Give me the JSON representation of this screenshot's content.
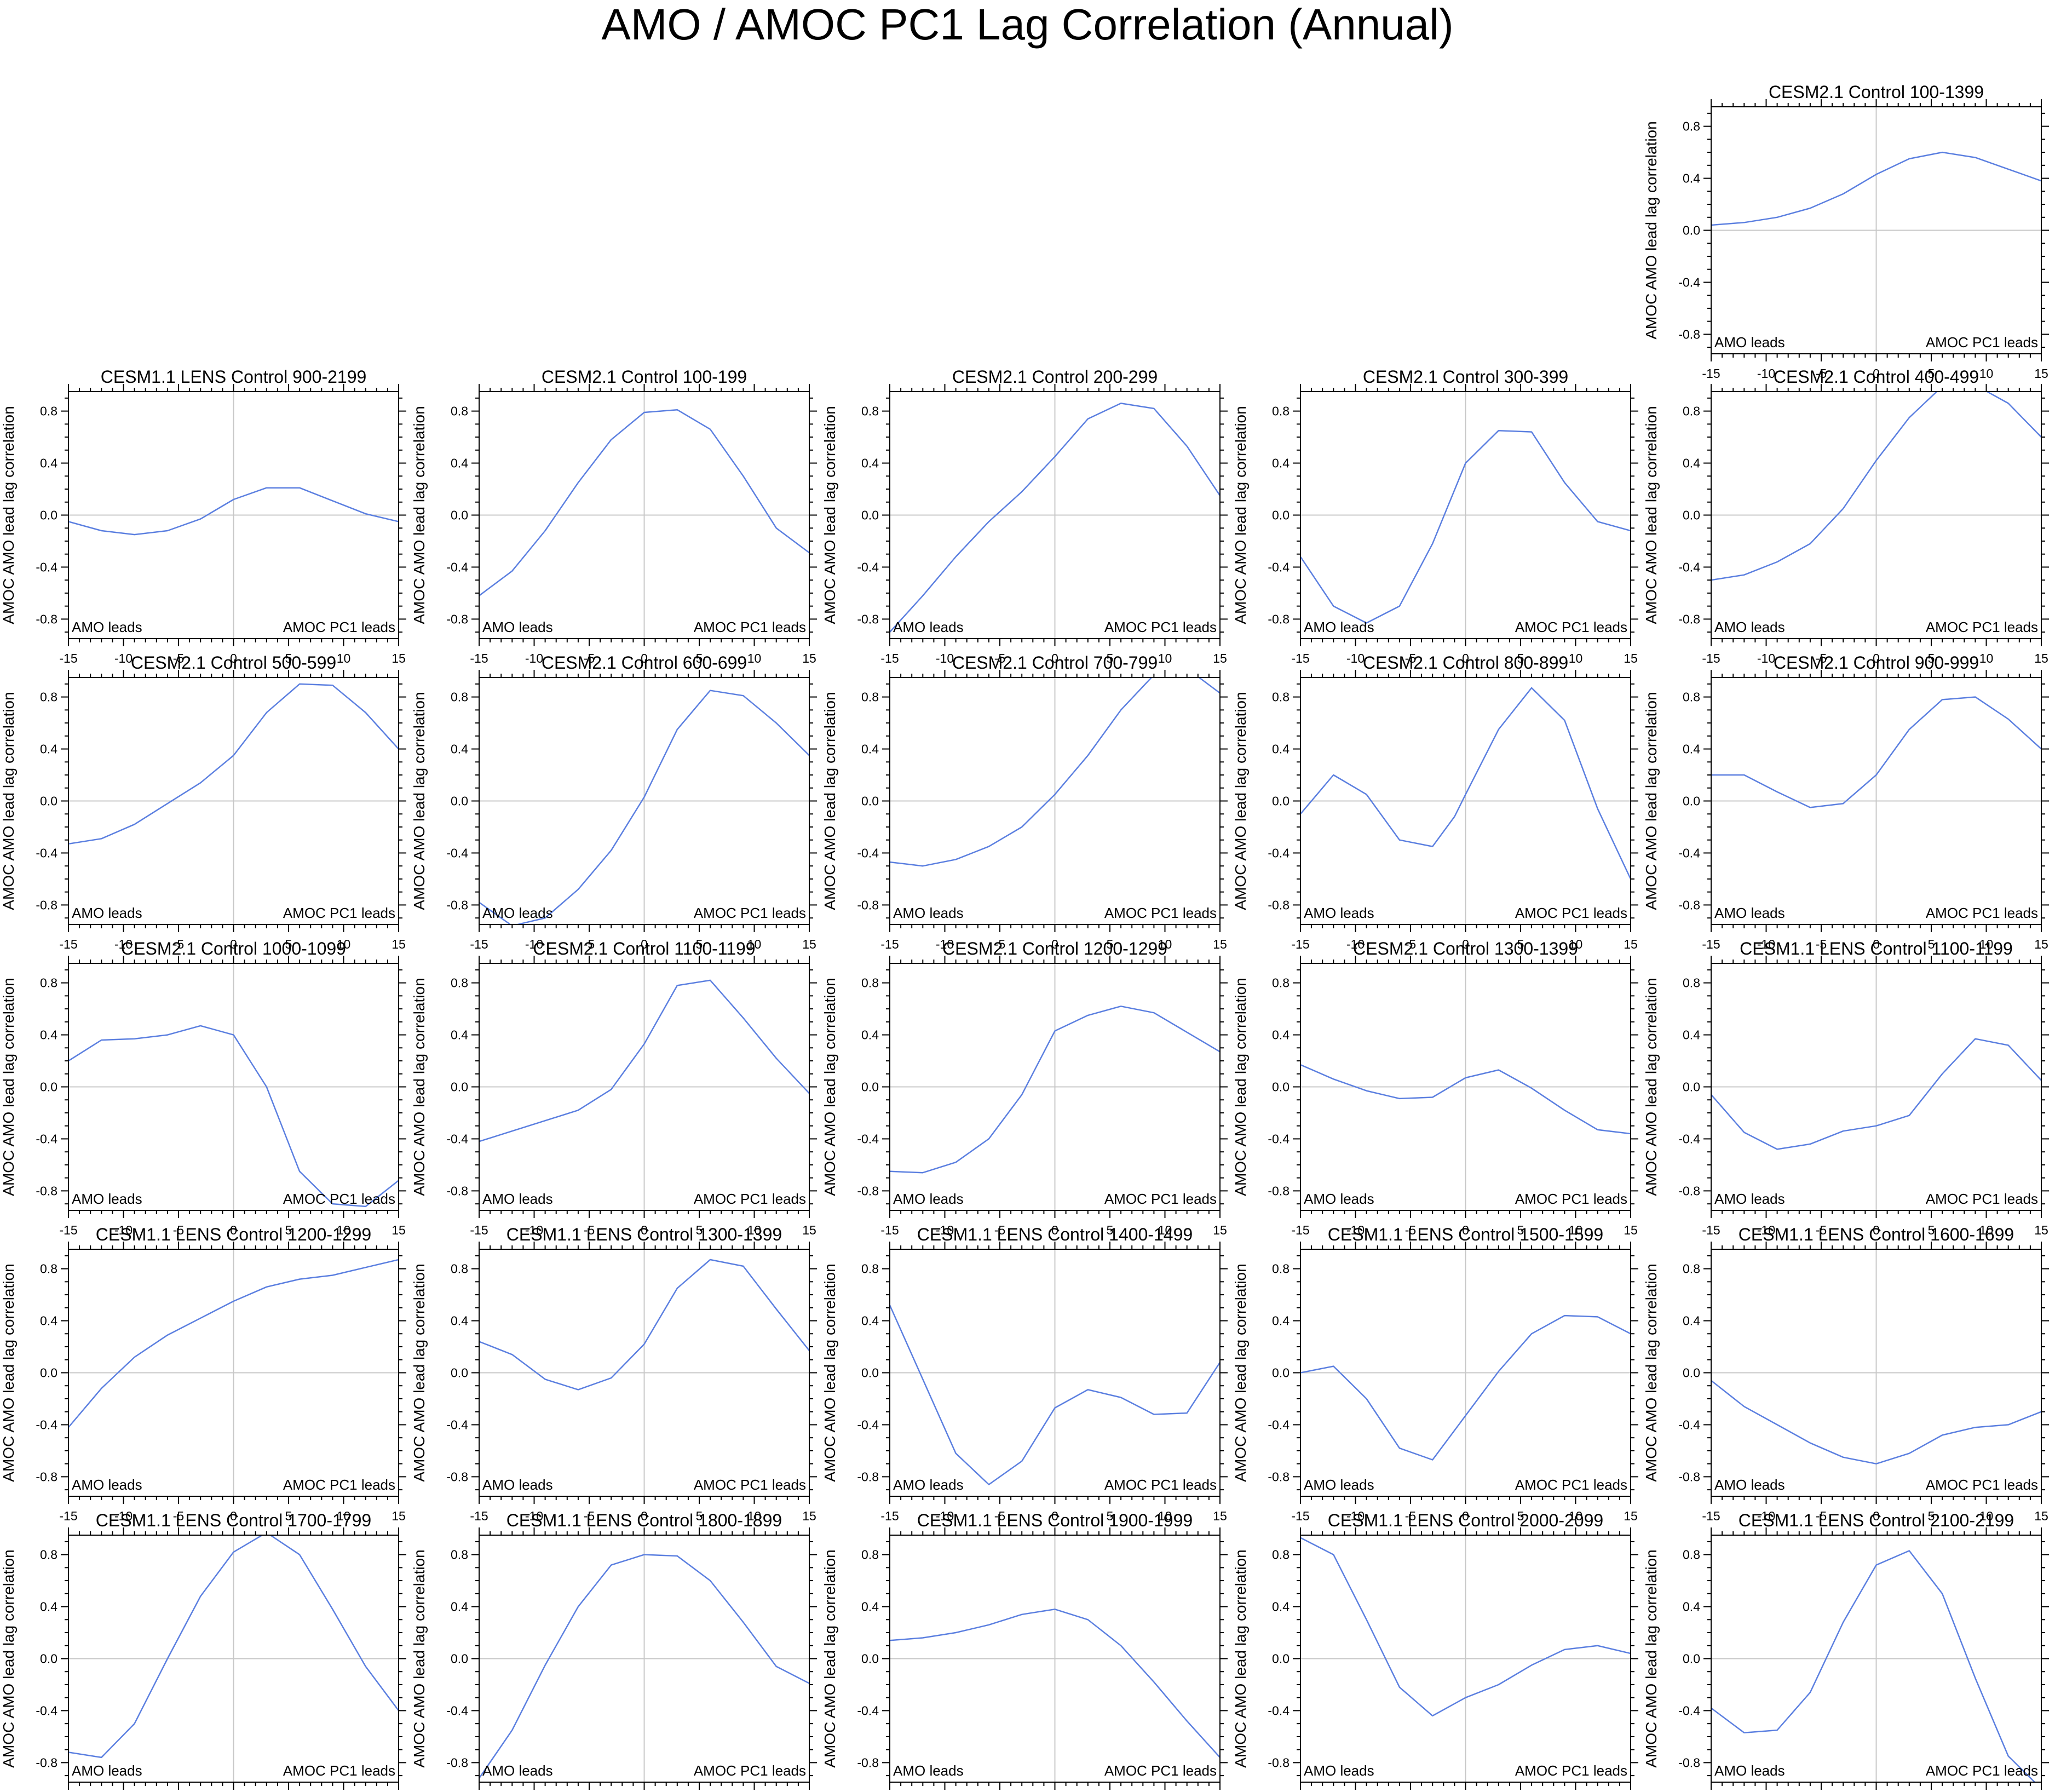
{
  "figure": {
    "title": "AMO / AMOC PC1 Lag Correlation (Annual)"
  },
  "common": {
    "ylabel": "AMOC AMO lead lag correlation",
    "left_annotation": "AMO leads",
    "right_annotation": "AMOC PC1 leads",
    "xlim": [
      -15,
      15
    ],
    "ylim": [
      -0.95,
      0.95
    ],
    "xticks": [
      "-15",
      "-10",
      "-5",
      "0",
      "5",
      "10",
      "15"
    ],
    "yticks": [
      "0.8",
      "0.4",
      "0.0",
      "-0.4",
      "-0.8"
    ],
    "line_color": "#5b7fe0",
    "grid_color": "#c8c8c8"
  },
  "chart_data": [
    {
      "type": "line",
      "title": "CESM2.1 Control 100-1399",
      "x": [
        -15,
        -12,
        -9,
        -6,
        -3,
        0,
        3,
        6,
        9,
        12,
        15
      ],
      "y": [
        0.04,
        0.06,
        0.1,
        0.17,
        0.28,
        0.43,
        0.55,
        0.6,
        0.56,
        0.47,
        0.38
      ]
    },
    {
      "type": "line",
      "title": "CESM1.1 LENS Control 900-2199",
      "x": [
        -15,
        -12,
        -9,
        -6,
        -3,
        0,
        3,
        6,
        9,
        12,
        15
      ],
      "y": [
        -0.05,
        -0.12,
        -0.15,
        -0.12,
        -0.03,
        0.12,
        0.21,
        0.21,
        0.11,
        0.01,
        -0.05
      ]
    },
    {
      "type": "line",
      "title": "CESM2.1 Control 100-199",
      "x": [
        -15,
        -12,
        -9,
        -6,
        -3,
        0,
        3,
        6,
        9,
        12,
        15
      ],
      "y": [
        -0.62,
        -0.43,
        -0.12,
        0.25,
        0.58,
        0.79,
        0.81,
        0.66,
        0.3,
        -0.1,
        -0.29
      ]
    },
    {
      "type": "line",
      "title": "CESM2.1 Control 200-299",
      "x": [
        -15,
        -12,
        -9,
        -6,
        -3,
        0,
        3,
        6,
        9,
        12,
        15
      ],
      "y": [
        -0.9,
        -0.62,
        -0.32,
        -0.05,
        0.18,
        0.45,
        0.74,
        0.86,
        0.82,
        0.53,
        0.15
      ]
    },
    {
      "type": "line",
      "title": "CESM2.1 Control 300-399",
      "x": [
        -15,
        -12,
        -9,
        -6,
        -3,
        0,
        3,
        6,
        9,
        12,
        15
      ],
      "y": [
        -0.32,
        -0.7,
        -0.83,
        -0.7,
        -0.22,
        0.4,
        0.65,
        0.64,
        0.25,
        -0.05,
        -0.12
      ]
    },
    {
      "type": "line",
      "title": "CESM2.1 Control 400-499",
      "x": [
        -15,
        -12,
        -9,
        -6,
        -3,
        0,
        3,
        6,
        9,
        12,
        15
      ],
      "y": [
        -0.5,
        -0.46,
        -0.36,
        -0.22,
        0.05,
        0.42,
        0.75,
        0.99,
        1.0,
        0.86,
        0.6
      ]
    },
    {
      "type": "line",
      "title": "CESM2.1 Control 500-599",
      "x": [
        -15,
        -12,
        -9,
        -6,
        -3,
        0,
        3,
        6,
        9,
        12,
        15
      ],
      "y": [
        -0.33,
        -0.29,
        -0.18,
        -0.02,
        0.14,
        0.35,
        0.68,
        0.9,
        0.89,
        0.68,
        0.4
      ]
    },
    {
      "type": "line",
      "title": "CESM2.1 Control 600-699",
      "x": [
        -15,
        -12,
        -9,
        -6,
        -3,
        0,
        3,
        6,
        9,
        12,
        15
      ],
      "y": [
        -0.78,
        -0.96,
        -0.9,
        -0.68,
        -0.38,
        0.03,
        0.55,
        0.85,
        0.81,
        0.6,
        0.35
      ]
    },
    {
      "type": "line",
      "title": "CESM2.1 Control 700-799",
      "x": [
        -15,
        -12,
        -9,
        -6,
        -3,
        0,
        3,
        6,
        9,
        12,
        15
      ],
      "y": [
        -0.47,
        -0.5,
        -0.45,
        -0.35,
        -0.2,
        0.05,
        0.35,
        0.7,
        0.97,
        1.02,
        0.83
      ]
    },
    {
      "type": "line",
      "title": "CESM2.1 Control 800-899",
      "x": [
        -15,
        -12,
        -9,
        -6,
        -3,
        -1,
        0,
        3,
        6,
        9,
        12,
        15
      ],
      "y": [
        -0.1,
        0.2,
        0.05,
        -0.3,
        -0.35,
        -0.12,
        0.05,
        0.55,
        0.87,
        0.62,
        -0.06,
        -0.6
      ]
    },
    {
      "type": "line",
      "title": "CESM2.1 Control 900-999",
      "x": [
        -15,
        -12,
        -9,
        -6,
        -3,
        0,
        3,
        6,
        9,
        12,
        15
      ],
      "y": [
        0.2,
        0.2,
        0.07,
        -0.05,
        -0.02,
        0.2,
        0.55,
        0.78,
        0.8,
        0.63,
        0.4
      ]
    },
    {
      "type": "line",
      "title": "CESM2.1 Control 1000-1099",
      "x": [
        -15,
        -12,
        -9,
        -6,
        -3,
        0,
        3,
        6,
        9,
        12,
        15
      ],
      "y": [
        0.2,
        0.36,
        0.37,
        0.4,
        0.47,
        0.4,
        0.0,
        -0.65,
        -0.9,
        -0.92,
        -0.72
      ]
    },
    {
      "type": "line",
      "title": "CESM2.1 Control 1100-1199",
      "x": [
        -15,
        -12,
        -9,
        -6,
        -3,
        0,
        3,
        6,
        9,
        12,
        15
      ],
      "y": [
        -0.42,
        -0.34,
        -0.26,
        -0.18,
        -0.02,
        0.33,
        0.78,
        0.82,
        0.53,
        0.22,
        -0.05
      ]
    },
    {
      "type": "line",
      "title": "CESM2.1 Control 1200-1299",
      "x": [
        -15,
        -12,
        -9,
        -6,
        -3,
        0,
        3,
        6,
        9,
        12,
        15
      ],
      "y": [
        -0.65,
        -0.66,
        -0.58,
        -0.4,
        -0.06,
        0.43,
        0.55,
        0.62,
        0.57,
        0.42,
        0.27
      ]
    },
    {
      "type": "line",
      "title": "CESM2.1 Control 1300-1399",
      "x": [
        -15,
        -12,
        -9,
        -6,
        -3,
        0,
        3,
        6,
        9,
        12,
        15
      ],
      "y": [
        0.17,
        0.06,
        -0.03,
        -0.09,
        -0.08,
        0.07,
        0.13,
        -0.01,
        -0.18,
        -0.33,
        -0.36
      ]
    },
    {
      "type": "line",
      "title": "CESM1.1 LENS Control 1100-1199",
      "x": [
        -15,
        -12,
        -9,
        -6,
        -3,
        0,
        3,
        6,
        9,
        12,
        15
      ],
      "y": [
        -0.06,
        -0.35,
        -0.48,
        -0.44,
        -0.34,
        -0.3,
        -0.22,
        0.1,
        0.37,
        0.32,
        0.05
      ]
    },
    {
      "type": "line",
      "title": "CESM1.1 LENS Control 1200-1299",
      "x": [
        -15,
        -12,
        -9,
        -6,
        -3,
        0,
        3,
        6,
        9,
        12,
        15
      ],
      "y": [
        -0.42,
        -0.12,
        0.12,
        0.29,
        0.42,
        0.55,
        0.66,
        0.72,
        0.75,
        0.81,
        0.87
      ]
    },
    {
      "type": "line",
      "title": "CESM1.1 LENS Control 1300-1399",
      "x": [
        -15,
        -12,
        -9,
        -6,
        -3,
        0,
        3,
        6,
        9,
        12,
        15
      ],
      "y": [
        0.24,
        0.14,
        -0.05,
        -0.13,
        -0.04,
        0.22,
        0.65,
        0.87,
        0.82,
        0.49,
        0.17
      ]
    },
    {
      "type": "line",
      "title": "CESM1.1 LENS Control 1400-1499",
      "x": [
        -15,
        -12,
        -9,
        -6,
        -3,
        0,
        3,
        6,
        9,
        12,
        15
      ],
      "y": [
        0.52,
        -0.05,
        -0.62,
        -0.86,
        -0.68,
        -0.27,
        -0.13,
        -0.19,
        -0.32,
        -0.31,
        0.08
      ]
    },
    {
      "type": "line",
      "title": "CESM1.1 LENS Control 1500-1599",
      "x": [
        -15,
        -12,
        -9,
        -6,
        -3,
        0,
        3,
        6,
        9,
        12,
        15
      ],
      "y": [
        0.0,
        0.05,
        -0.2,
        -0.58,
        -0.67,
        -0.33,
        0.01,
        0.3,
        0.44,
        0.43,
        0.3
      ]
    },
    {
      "type": "line",
      "title": "CESM1.1 LENS Control 1600-1699",
      "x": [
        -15,
        -12,
        -9,
        -6,
        -3,
        0,
        3,
        6,
        9,
        12,
        15
      ],
      "y": [
        -0.06,
        -0.26,
        -0.4,
        -0.54,
        -0.65,
        -0.7,
        -0.62,
        -0.48,
        -0.42,
        -0.4,
        -0.3
      ]
    },
    {
      "type": "line",
      "title": "CESM1.1 LENS Control 1700-1799",
      "x": [
        -15,
        -12,
        -9,
        -6,
        -3,
        0,
        3,
        6,
        9,
        12,
        15
      ],
      "y": [
        -0.72,
        -0.76,
        -0.5,
        0.0,
        0.48,
        0.82,
        0.97,
        0.8,
        0.38,
        -0.06,
        -0.4
      ]
    },
    {
      "type": "line",
      "title": "CESM1.1 LENS Control 1800-1899",
      "x": [
        -15,
        -12,
        -9,
        -6,
        -3,
        0,
        3,
        6,
        9,
        12,
        15
      ],
      "y": [
        -0.92,
        -0.55,
        -0.05,
        0.4,
        0.72,
        0.8,
        0.79,
        0.6,
        0.28,
        -0.06,
        -0.19
      ]
    },
    {
      "type": "line",
      "title": "CESM1.1 LENS Control 1900-1999",
      "x": [
        -15,
        -12,
        -9,
        -6,
        -3,
        0,
        3,
        6,
        9,
        12,
        15
      ],
      "y": [
        0.14,
        0.16,
        0.2,
        0.26,
        0.34,
        0.38,
        0.3,
        0.1,
        -0.18,
        -0.48,
        -0.76
      ]
    },
    {
      "type": "line",
      "title": "CESM1.1 LENS Control 2000-2099",
      "x": [
        -15,
        -12,
        -9,
        -6,
        -3,
        0,
        3,
        6,
        9,
        12,
        15
      ],
      "y": [
        0.93,
        0.8,
        0.3,
        -0.22,
        -0.44,
        -0.3,
        -0.2,
        -0.05,
        0.07,
        0.1,
        0.04
      ]
    },
    {
      "type": "line",
      "title": "CESM1.1 LENS Control 2100-2199",
      "x": [
        -15,
        -12,
        -9,
        -6,
        -3,
        0,
        3,
        6,
        9,
        12,
        15
      ],
      "y": [
        -0.38,
        -0.57,
        -0.55,
        -0.26,
        0.28,
        0.72,
        0.83,
        0.5,
        -0.15,
        -0.75,
        -1.0
      ]
    }
  ]
}
